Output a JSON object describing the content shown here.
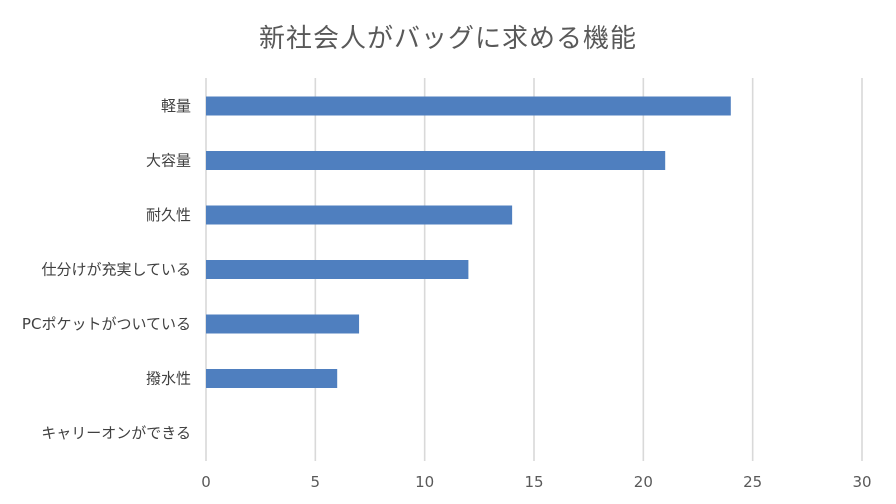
{
  "chart_data": {
    "type": "bar",
    "orientation": "horizontal",
    "title": "新社会人がバッグに求める機能",
    "categories": [
      "軽量",
      "大容量",
      "耐久性",
      "仕分けが充実している",
      "PCポケットがついている",
      "撥水性",
      "キャリーオンができる"
    ],
    "values": [
      24,
      21,
      14,
      12,
      7,
      6,
      0
    ],
    "xlim": [
      0,
      30
    ],
    "xticks": [
      0,
      5,
      10,
      15,
      20,
      25,
      30
    ],
    "xlabel": "",
    "ylabel": "",
    "grid": true,
    "legend": "none",
    "bar_color": "#4f7fbf",
    "grid_color": "#d9d9d9"
  }
}
